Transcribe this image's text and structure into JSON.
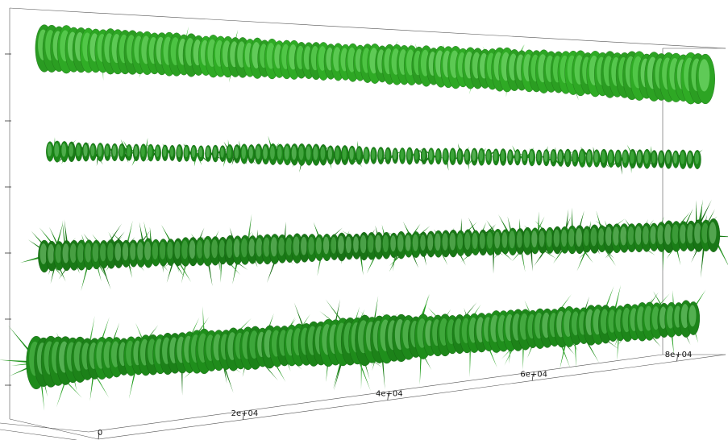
{
  "chart_data": {
    "type": "other",
    "title": "",
    "xlabel": "",
    "ylabel": "",
    "x_ticks": [
      "0",
      "2e+04",
      "4e+04",
      "6e+04",
      "8e+04"
    ],
    "x_tick_values": [
      0,
      20000,
      40000,
      60000,
      80000
    ],
    "xlim": [
      0,
      85000
    ],
    "grid": false,
    "series": [
      {
        "color": "#35c22a",
        "radius_profile": [
          0.9,
          0.8,
          0.75,
          0.7,
          0.7,
          0.75,
          0.8,
          0.85,
          0.95
        ],
        "spike_level": 0.15
      },
      {
        "color": "#1f9a1c",
        "radius_profile": [
          0.5,
          0.4,
          0.4,
          0.55,
          0.4,
          0.4,
          0.4,
          0.45,
          0.45
        ],
        "spike_level": 0.45
      },
      {
        "color": "#1e8f1a",
        "radius_profile": [
          0.65,
          0.6,
          0.6,
          0.6,
          0.55,
          0.55,
          0.55,
          0.6,
          0.7
        ],
        "spike_level": 1.0
      },
      {
        "color": "#23a01f",
        "radius_profile": [
          0.95,
          0.7,
          0.8,
          0.75,
          0.9,
          0.75,
          0.75,
          0.7,
          0.65
        ],
        "spike_level": 0.75
      }
    ]
  }
}
